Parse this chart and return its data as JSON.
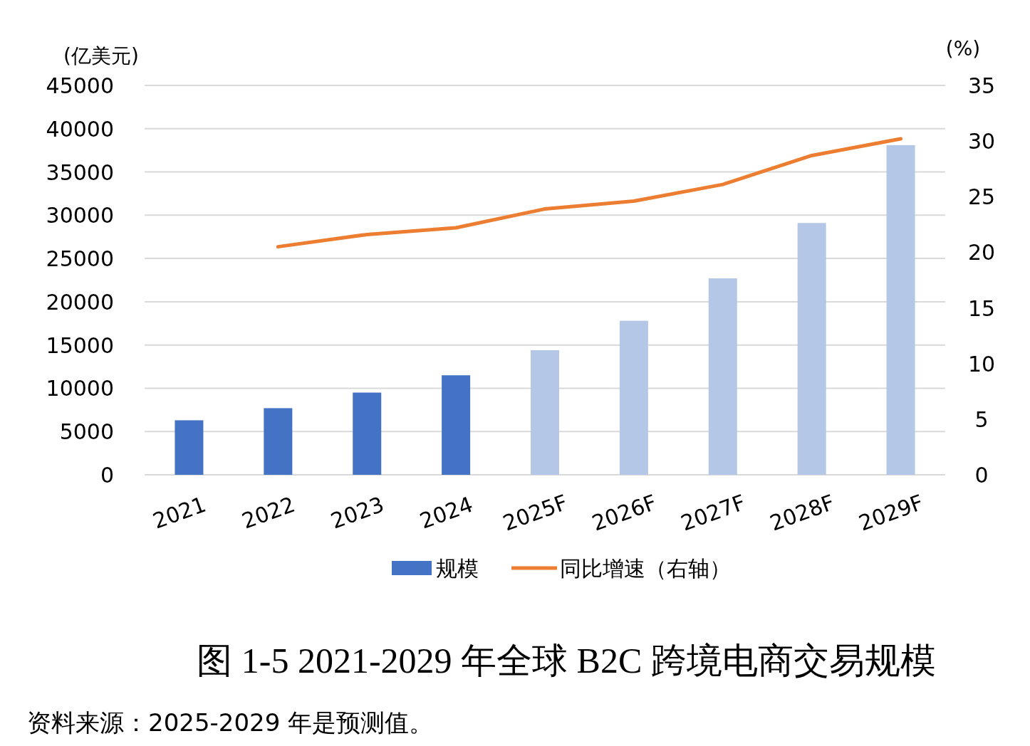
{
  "chart_data": {
    "type": "bar",
    "title": "图 1-5 2021-2029 年全球 B2C 跨境电商交易规模",
    "ylabel": "(亿美元)",
    "y2label": "(%)",
    "annotations": [
      "资料来源：2025-2029 年是预测值。"
    ],
    "categories": [
      "2021",
      "2022",
      "2023",
      "2024",
      "2025F",
      "2026F",
      "2027F",
      "2028F",
      "2029F"
    ],
    "series": [
      {
        "name": "规模",
        "color": "#4472c4",
        "colors": [
          "#4472c4",
          "#4472c4",
          "#4472c4",
          "#4472c4",
          "#b4c7e7",
          "#b4c7e7",
          "#b4c7e7",
          "#b4c7e7",
          "#b4c7e7"
        ],
        "values": [
          6300,
          7700,
          9500,
          11500,
          14400,
          17800,
          22700,
          29100,
          38100
        ]
      },
      {
        "name": "同比增速（右轴）",
        "type": "line",
        "axis": "y2",
        "color": "#ed7d31",
        "values": [
          null,
          20.5,
          21.6,
          22.2,
          23.9,
          24.6,
          26.1,
          28.7,
          30.2
        ]
      }
    ],
    "ylim": [
      0,
      45000
    ],
    "yticks": [
      0,
      5000,
      10000,
      15000,
      20000,
      25000,
      30000,
      35000,
      40000,
      45000
    ],
    "y2lim": [
      0,
      35
    ],
    "y2ticks": [
      0,
      5,
      10,
      15,
      20,
      25,
      30,
      35
    ],
    "grid": "y",
    "legend": "bottom"
  }
}
